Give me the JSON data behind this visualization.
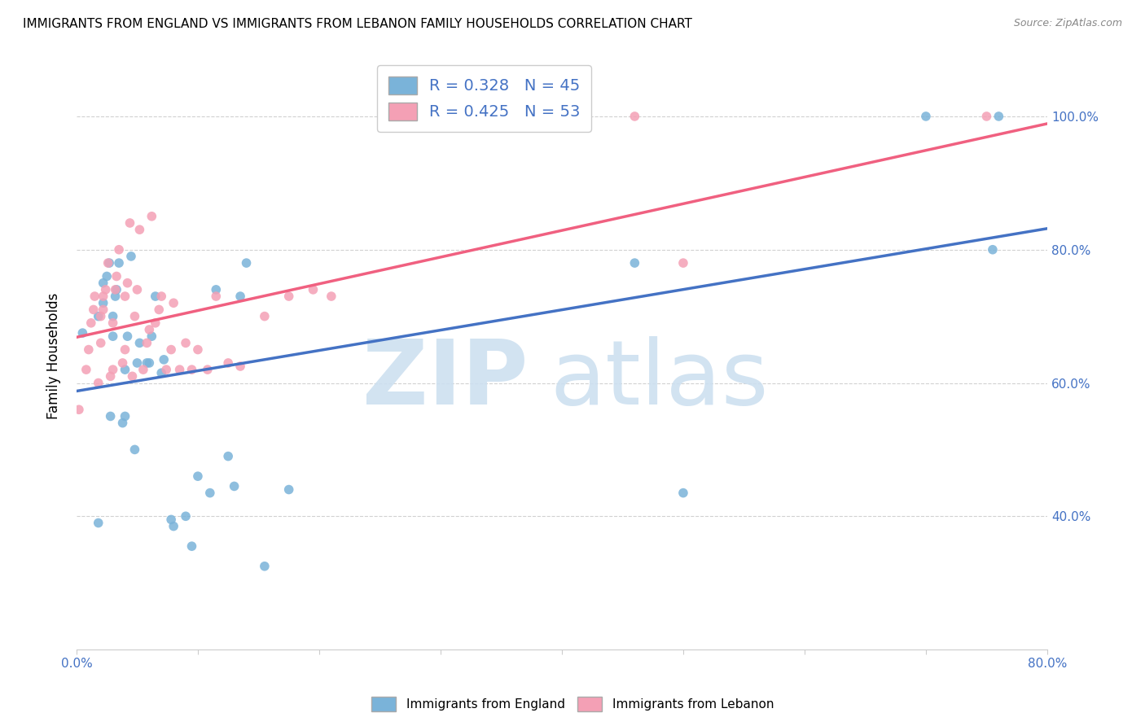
{
  "title": "IMMIGRANTS FROM ENGLAND VS IMMIGRANTS FROM LEBANON FAMILY HOUSEHOLDS CORRELATION CHART",
  "source": "Source: ZipAtlas.com",
  "ylabel": "Family Households",
  "xlim": [
    0.0,
    0.8
  ],
  "ylim": [
    0.2,
    1.08
  ],
  "r_england": 0.328,
  "n_england": 45,
  "r_lebanon": 0.425,
  "n_lebanon": 53,
  "color_england": "#7ab3d9",
  "color_lebanon": "#f4a0b5",
  "line_england": "#4472c4",
  "line_lebanon": "#f06080",
  "england_x": [
    0.005,
    0.018,
    0.022,
    0.022,
    0.025,
    0.027,
    0.028,
    0.03,
    0.03,
    0.032,
    0.033,
    0.035,
    0.038,
    0.04,
    0.04,
    0.042,
    0.045,
    0.018,
    0.048,
    0.05,
    0.052,
    0.058,
    0.06,
    0.062,
    0.065,
    0.07,
    0.072,
    0.078,
    0.08,
    0.09,
    0.095,
    0.1,
    0.11,
    0.115,
    0.13,
    0.14,
    0.155,
    0.175,
    0.125,
    0.135,
    0.46,
    0.5,
    0.7,
    0.755,
    0.76
  ],
  "england_y": [
    0.675,
    0.7,
    0.72,
    0.75,
    0.76,
    0.78,
    0.55,
    0.67,
    0.7,
    0.73,
    0.74,
    0.78,
    0.54,
    0.55,
    0.62,
    0.67,
    0.79,
    0.39,
    0.5,
    0.63,
    0.66,
    0.63,
    0.63,
    0.67,
    0.73,
    0.615,
    0.635,
    0.395,
    0.385,
    0.4,
    0.355,
    0.46,
    0.435,
    0.74,
    0.445,
    0.78,
    0.325,
    0.44,
    0.49,
    0.73,
    0.78,
    0.435,
    1.0,
    0.8,
    1.0
  ],
  "lebanon_x": [
    0.002,
    0.008,
    0.01,
    0.012,
    0.014,
    0.015,
    0.018,
    0.02,
    0.02,
    0.022,
    0.022,
    0.024,
    0.026,
    0.028,
    0.03,
    0.03,
    0.032,
    0.033,
    0.035,
    0.038,
    0.04,
    0.04,
    0.042,
    0.044,
    0.046,
    0.048,
    0.05,
    0.052,
    0.055,
    0.058,
    0.06,
    0.062,
    0.065,
    0.068,
    0.07,
    0.074,
    0.078,
    0.08,
    0.085,
    0.09,
    0.095,
    0.1,
    0.108,
    0.115,
    0.125,
    0.135,
    0.155,
    0.175,
    0.195,
    0.21,
    0.46,
    0.5,
    0.75
  ],
  "lebanon_y": [
    0.56,
    0.62,
    0.65,
    0.69,
    0.71,
    0.73,
    0.6,
    0.66,
    0.7,
    0.71,
    0.73,
    0.74,
    0.78,
    0.61,
    0.62,
    0.69,
    0.74,
    0.76,
    0.8,
    0.63,
    0.65,
    0.73,
    0.75,
    0.84,
    0.61,
    0.7,
    0.74,
    0.83,
    0.62,
    0.66,
    0.68,
    0.85,
    0.69,
    0.71,
    0.73,
    0.62,
    0.65,
    0.72,
    0.62,
    0.66,
    0.62,
    0.65,
    0.62,
    0.73,
    0.63,
    0.625,
    0.7,
    0.73,
    0.74,
    0.73,
    1.0,
    0.78,
    1.0
  ]
}
